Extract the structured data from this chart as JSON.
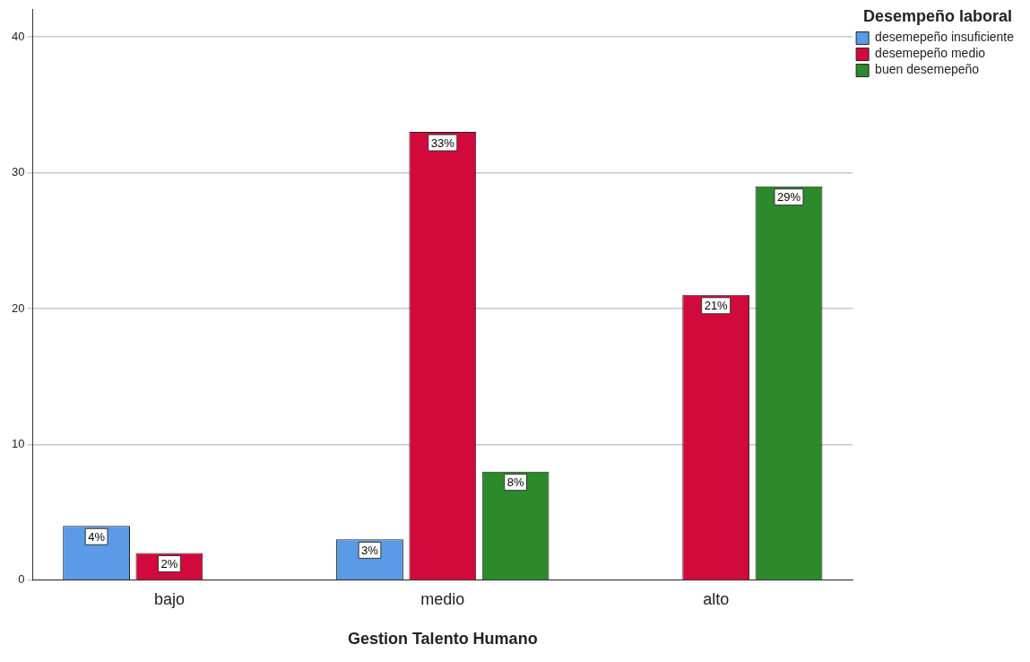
{
  "chart_data": {
    "type": "bar",
    "xlabel": "Gestion Talento Humano",
    "legend_title": "Desempeño laboral",
    "categories": [
      "bajo",
      "medio",
      "alto"
    ],
    "series": [
      {
        "name": "desemepeño insuficiente",
        "color": "#5a9ae6",
        "values": [
          4,
          3,
          null
        ],
        "value_labels": [
          "4%",
          "3%",
          null
        ]
      },
      {
        "name": "desemepeño medio",
        "color": "#d20a3c",
        "values": [
          2,
          33,
          21
        ],
        "value_labels": [
          "2%",
          "33%",
          "21%"
        ]
      },
      {
        "name": "buen desemepeño",
        "color": "#2c8a2c",
        "values": [
          null,
          8,
          29
        ],
        "value_labels": [
          null,
          "8%",
          "29%"
        ]
      }
    ],
    "ylim": [
      0,
      42
    ],
    "yticks": [
      0,
      10,
      20,
      30,
      40
    ],
    "grid": "y",
    "legend": "top right"
  }
}
